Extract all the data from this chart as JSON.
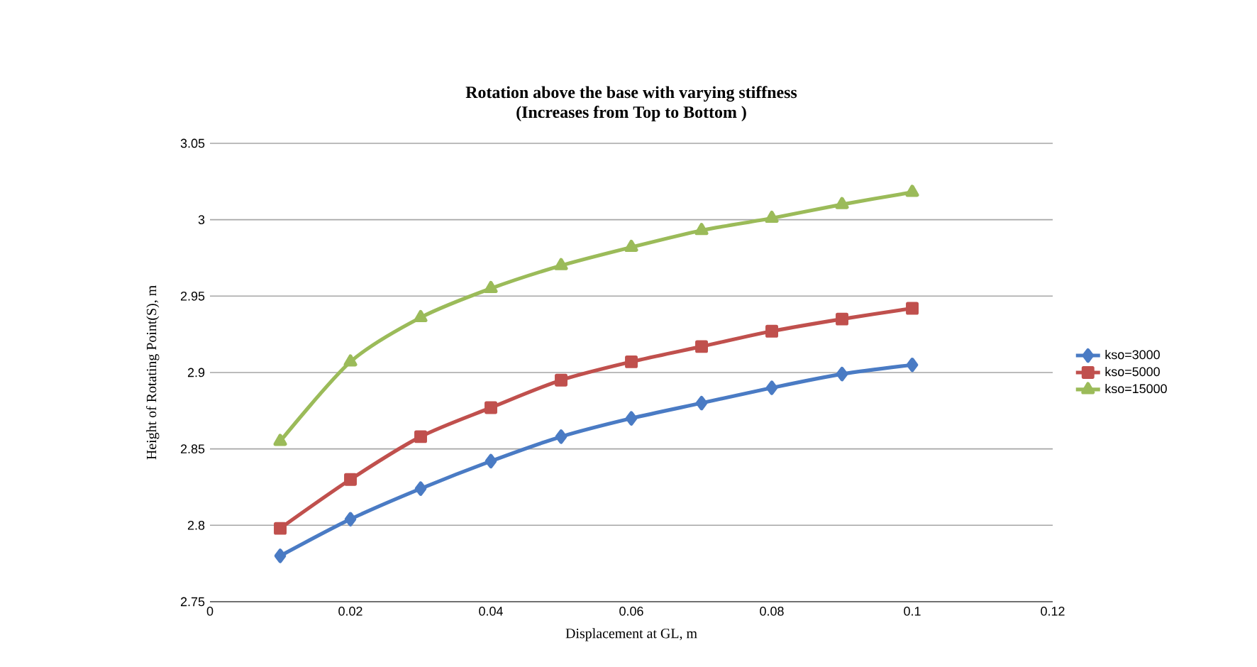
{
  "chart_data": {
    "type": "line",
    "title": "Rotation above the base with varying stiffness",
    "subtitle": "(Increases from Top to Bottom )",
    "xlabel": "Displacement at GL, m",
    "ylabel": "Height of Rotating Point(S), m",
    "x": [
      0.01,
      0.02,
      0.03,
      0.04,
      0.05,
      0.06,
      0.07,
      0.08,
      0.09,
      0.1
    ],
    "series": [
      {
        "name": "kso=3000",
        "color": "#4a7bc4",
        "marker": "diamond",
        "values": [
          2.78,
          2.804,
          2.824,
          2.842,
          2.858,
          2.87,
          2.88,
          2.89,
          2.899,
          2.905
        ]
      },
      {
        "name": "kso=5000",
        "color": "#c0504d",
        "marker": "square",
        "values": [
          2.798,
          2.83,
          2.858,
          2.877,
          2.895,
          2.907,
          2.917,
          2.927,
          2.935,
          2.942
        ]
      },
      {
        "name": "kso=15000",
        "color": "#9bbb59",
        "marker": "triangle",
        "values": [
          2.855,
          2.907,
          2.936,
          2.955,
          2.97,
          2.982,
          2.993,
          3.001,
          3.01,
          3.018
        ]
      }
    ],
    "xlim": [
      0,
      0.12
    ],
    "xticks": [
      0,
      0.02,
      0.04,
      0.06,
      0.08,
      0.1,
      0.12
    ],
    "ylim": [
      2.75,
      3.05
    ],
    "yticks": [
      2.75,
      2.8,
      2.85,
      2.9,
      2.95,
      3,
      3.05
    ],
    "grid": "y",
    "legend": "right",
    "line_style": "solid"
  }
}
